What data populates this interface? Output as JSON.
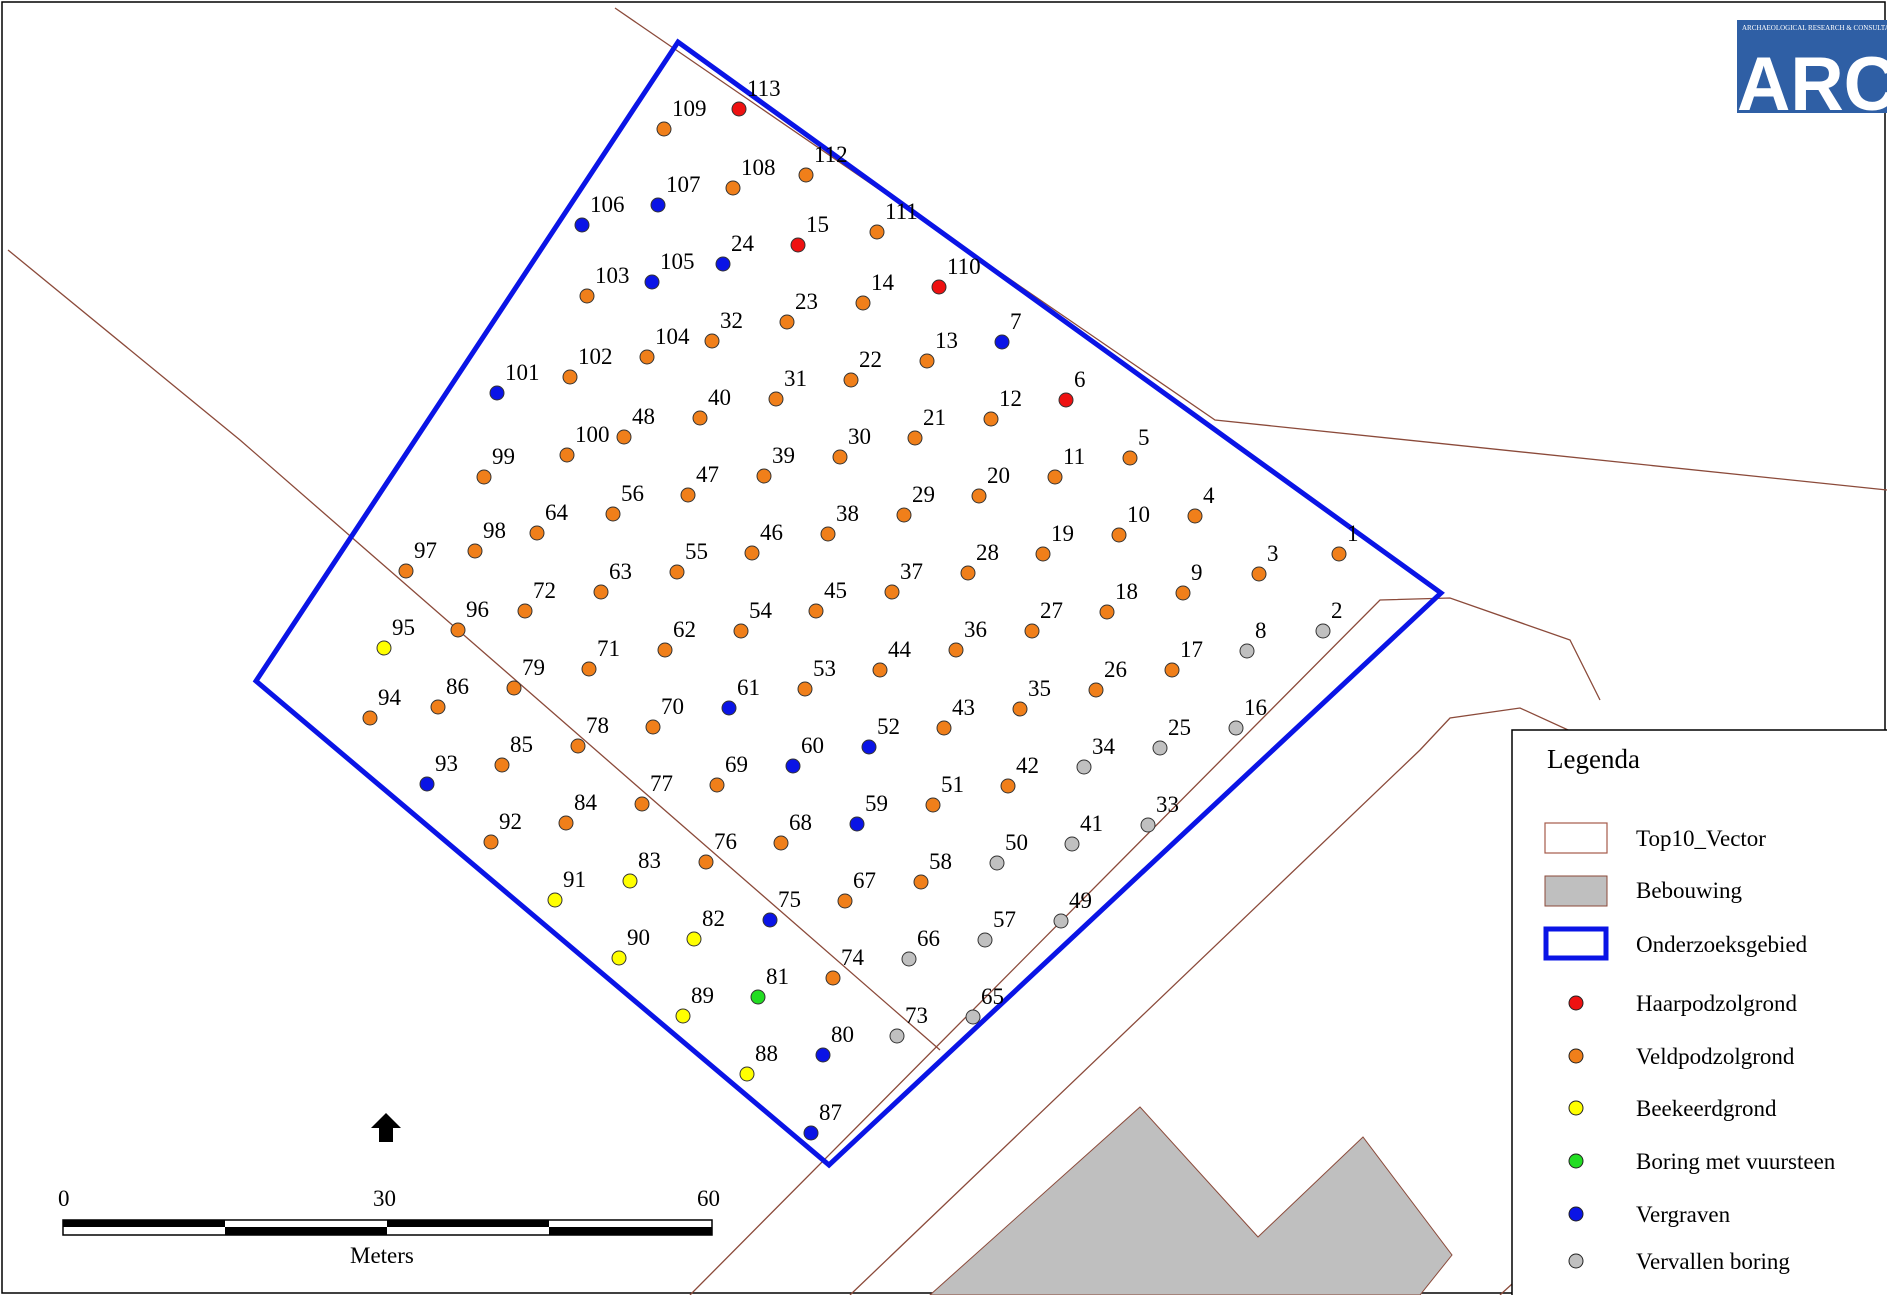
{
  "logo": {
    "text": "ARC",
    "subtitle": "ARCHAEOLOGICAL RESEARCH & CONSULTANCY",
    "color": "#2f5fa5"
  },
  "legend": {
    "title": "Legenda",
    "items": [
      {
        "label": "Top10_Vector",
        "kind": "line-box",
        "color": "#a55a4a"
      },
      {
        "label": "Bebouwing",
        "kind": "fill-box",
        "color": "#bfbfbf"
      },
      {
        "label": "Onderzoeksgebied",
        "kind": "outline-box",
        "color": "#0a14e6"
      },
      {
        "label": "Haarpodzolgrond",
        "kind": "point",
        "color": "#ee1111"
      },
      {
        "label": "Veldpodzolgrond",
        "kind": "point",
        "color": "#f07f1a"
      },
      {
        "label": "Beekeerdgrond",
        "kind": "point",
        "color": "#ffff00"
      },
      {
        "label": "Boring met vuursteen",
        "kind": "point",
        "color": "#22dd22"
      },
      {
        "label": "Vergraven",
        "kind": "point",
        "color": "#0a14e6"
      },
      {
        "label": "Vervallen boring",
        "kind": "point",
        "color": "#c0c0c0"
      }
    ]
  },
  "scalebar": {
    "tick_labels": [
      "0",
      "30",
      "60"
    ],
    "unit": "Meters"
  },
  "north_arrow": "north-arrow-icon",
  "borings": [
    {
      "id": "1",
      "cat": "veld"
    },
    {
      "id": "2",
      "cat": "vervallen"
    },
    {
      "id": "3",
      "cat": "veld"
    },
    {
      "id": "4",
      "cat": "veld"
    },
    {
      "id": "5",
      "cat": "veld"
    },
    {
      "id": "6",
      "cat": "haar"
    },
    {
      "id": "7",
      "cat": "vergraven"
    },
    {
      "id": "8",
      "cat": "vervallen"
    },
    {
      "id": "9",
      "cat": "veld"
    },
    {
      "id": "10",
      "cat": "veld"
    },
    {
      "id": "11",
      "cat": "veld"
    },
    {
      "id": "12",
      "cat": "veld"
    },
    {
      "id": "13",
      "cat": "veld"
    },
    {
      "id": "14",
      "cat": "veld"
    },
    {
      "id": "15",
      "cat": "haar"
    },
    {
      "id": "16",
      "cat": "vervallen"
    },
    {
      "id": "17",
      "cat": "veld"
    },
    {
      "id": "18",
      "cat": "veld"
    },
    {
      "id": "19",
      "cat": "veld"
    },
    {
      "id": "20",
      "cat": "veld"
    },
    {
      "id": "21",
      "cat": "veld"
    },
    {
      "id": "22",
      "cat": "veld"
    },
    {
      "id": "23",
      "cat": "veld"
    },
    {
      "id": "24",
      "cat": "vergraven"
    },
    {
      "id": "25",
      "cat": "vervallen"
    },
    {
      "id": "26",
      "cat": "veld"
    },
    {
      "id": "27",
      "cat": "veld"
    },
    {
      "id": "28",
      "cat": "veld"
    },
    {
      "id": "29",
      "cat": "veld"
    },
    {
      "id": "30",
      "cat": "veld"
    },
    {
      "id": "31",
      "cat": "veld"
    },
    {
      "id": "32",
      "cat": "veld"
    },
    {
      "id": "33",
      "cat": "vervallen"
    },
    {
      "id": "34",
      "cat": "vervallen"
    },
    {
      "id": "35",
      "cat": "veld"
    },
    {
      "id": "36",
      "cat": "veld"
    },
    {
      "id": "37",
      "cat": "veld"
    },
    {
      "id": "38",
      "cat": "veld"
    },
    {
      "id": "39",
      "cat": "veld"
    },
    {
      "id": "40",
      "cat": "veld"
    },
    {
      "id": "41",
      "cat": "vervallen"
    },
    {
      "id": "42",
      "cat": "veld"
    },
    {
      "id": "43",
      "cat": "veld"
    },
    {
      "id": "44",
      "cat": "veld"
    },
    {
      "id": "45",
      "cat": "veld"
    },
    {
      "id": "46",
      "cat": "veld"
    },
    {
      "id": "47",
      "cat": "veld"
    },
    {
      "id": "48",
      "cat": "veld"
    },
    {
      "id": "49",
      "cat": "vervallen"
    },
    {
      "id": "50",
      "cat": "vervallen"
    },
    {
      "id": "51",
      "cat": "veld"
    },
    {
      "id": "52",
      "cat": "vergraven"
    },
    {
      "id": "53",
      "cat": "veld"
    },
    {
      "id": "54",
      "cat": "veld"
    },
    {
      "id": "55",
      "cat": "veld"
    },
    {
      "id": "56",
      "cat": "veld"
    },
    {
      "id": "57",
      "cat": "vervallen"
    },
    {
      "id": "58",
      "cat": "veld"
    },
    {
      "id": "59",
      "cat": "vergraven"
    },
    {
      "id": "60",
      "cat": "vergraven"
    },
    {
      "id": "61",
      "cat": "vergraven"
    },
    {
      "id": "62",
      "cat": "veld"
    },
    {
      "id": "63",
      "cat": "veld"
    },
    {
      "id": "64",
      "cat": "veld"
    },
    {
      "id": "65",
      "cat": "vervallen"
    },
    {
      "id": "66",
      "cat": "vervallen"
    },
    {
      "id": "67",
      "cat": "veld"
    },
    {
      "id": "68",
      "cat": "veld"
    },
    {
      "id": "69",
      "cat": "veld"
    },
    {
      "id": "70",
      "cat": "veld"
    },
    {
      "id": "71",
      "cat": "veld"
    },
    {
      "id": "72",
      "cat": "veld"
    },
    {
      "id": "73",
      "cat": "vervallen"
    },
    {
      "id": "74",
      "cat": "veld"
    },
    {
      "id": "75",
      "cat": "vergraven"
    },
    {
      "id": "76",
      "cat": "veld"
    },
    {
      "id": "77",
      "cat": "veld"
    },
    {
      "id": "78",
      "cat": "veld"
    },
    {
      "id": "79",
      "cat": "veld"
    },
    {
      "id": "80",
      "cat": "vergraven"
    },
    {
      "id": "81",
      "cat": "vuursteen"
    },
    {
      "id": "82",
      "cat": "beek"
    },
    {
      "id": "83",
      "cat": "beek"
    },
    {
      "id": "84",
      "cat": "veld"
    },
    {
      "id": "85",
      "cat": "veld"
    },
    {
      "id": "86",
      "cat": "veld"
    },
    {
      "id": "87",
      "cat": "vergraven"
    },
    {
      "id": "88",
      "cat": "beek"
    },
    {
      "id": "89",
      "cat": "beek"
    },
    {
      "id": "90",
      "cat": "beek"
    },
    {
      "id": "91",
      "cat": "beek"
    },
    {
      "id": "92",
      "cat": "veld"
    },
    {
      "id": "93",
      "cat": "vergraven"
    },
    {
      "id": "94",
      "cat": "veld"
    },
    {
      "id": "95",
      "cat": "beek"
    },
    {
      "id": "96",
      "cat": "veld"
    },
    {
      "id": "97",
      "cat": "veld"
    },
    {
      "id": "98",
      "cat": "veld"
    },
    {
      "id": "99",
      "cat": "veld"
    },
    {
      "id": "100",
      "cat": "veld"
    },
    {
      "id": "101",
      "cat": "vergraven"
    },
    {
      "id": "102",
      "cat": "veld"
    },
    {
      "id": "103",
      "cat": "veld"
    },
    {
      "id": "104",
      "cat": "veld"
    },
    {
      "id": "105",
      "cat": "vergraven"
    },
    {
      "id": "106",
      "cat": "vergraven"
    },
    {
      "id": "107",
      "cat": "vergraven"
    },
    {
      "id": "108",
      "cat": "veld"
    },
    {
      "id": "109",
      "cat": "veld"
    },
    {
      "id": "110",
      "cat": "haar"
    },
    {
      "id": "111",
      "cat": "veld"
    },
    {
      "id": "112",
      "cat": "veld"
    },
    {
      "id": "113",
      "cat": "haar"
    }
  ],
  "category_colors": {
    "haar": "#ee1111",
    "veld": "#f07f1a",
    "beek": "#ffff00",
    "vuursteen": "#22dd22",
    "vergraven": "#0a14e6",
    "vervallen": "#c0c0c0"
  }
}
